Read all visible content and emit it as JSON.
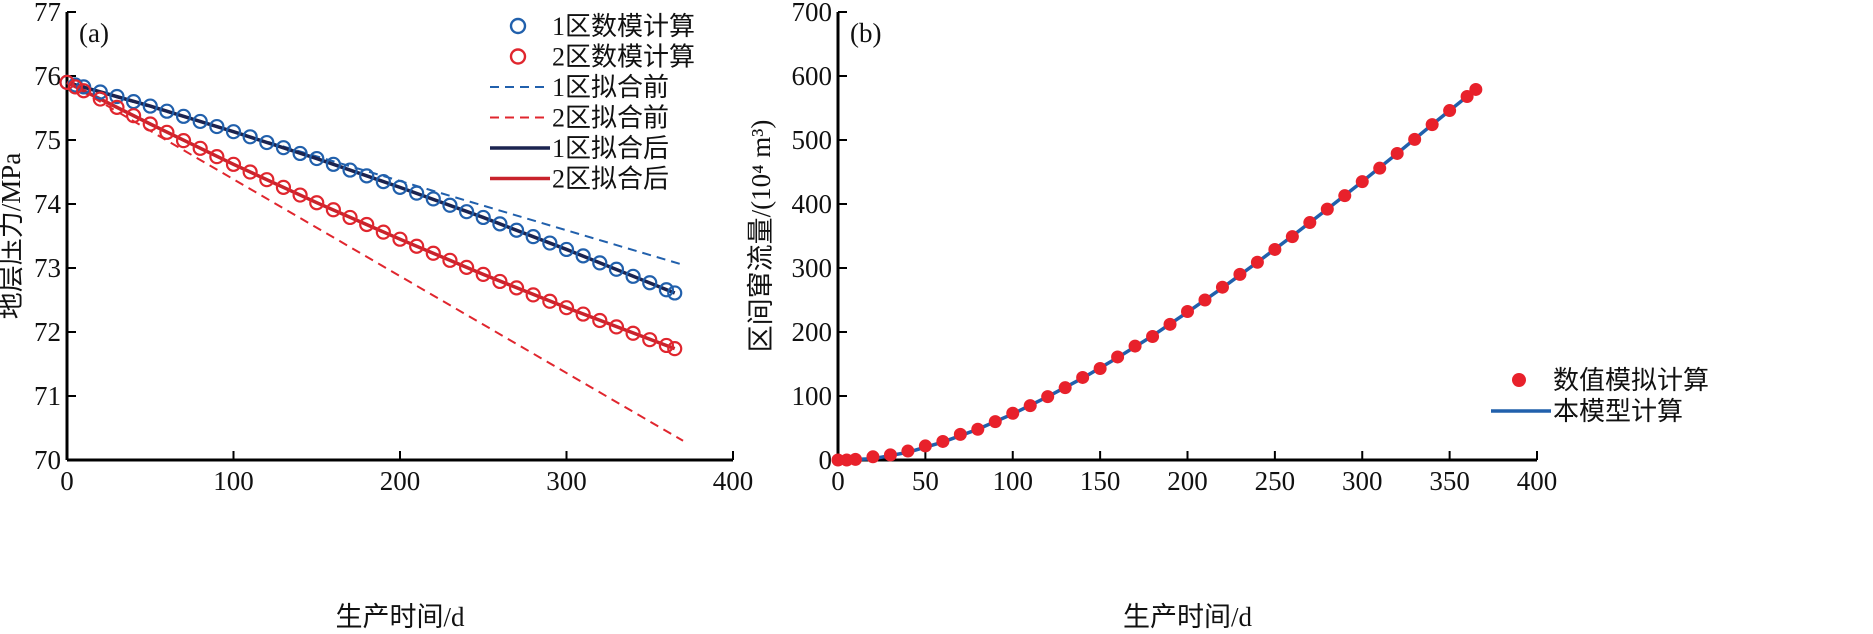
{
  "chart_data": [
    {
      "type": "scatter",
      "panel": "(a)",
      "xlabel": "生产时间/d",
      "ylabel": "地层压力/MPa",
      "xlim": [
        0,
        400
      ],
      "ylim": [
        70,
        77
      ],
      "xticks": [
        0,
        100,
        200,
        300,
        400
      ],
      "yticks": [
        70,
        71,
        72,
        73,
        74,
        75,
        76,
        77
      ],
      "legend_position": "top-right",
      "grid": false,
      "series": [
        {
          "name": "1区数模计算",
          "kind": "circle-open",
          "color": "#2160ac",
          "x": [
            0,
            5,
            10,
            20,
            30,
            40,
            50,
            60,
            70,
            80,
            90,
            100,
            110,
            120,
            130,
            140,
            150,
            160,
            170,
            180,
            190,
            200,
            210,
            220,
            230,
            240,
            250,
            260,
            270,
            280,
            290,
            300,
            310,
            320,
            330,
            340,
            350,
            360,
            365
          ],
          "y": [
            75.9,
            75.86,
            75.83,
            75.75,
            75.68,
            75.6,
            75.53,
            75.45,
            75.37,
            75.29,
            75.21,
            75.13,
            75.05,
            74.96,
            74.88,
            74.79,
            74.71,
            74.62,
            74.53,
            74.44,
            74.35,
            74.26,
            74.17,
            74.08,
            73.98,
            73.88,
            73.79,
            73.69,
            73.59,
            73.49,
            73.39,
            73.29,
            73.19,
            73.08,
            72.98,
            72.87,
            72.77,
            72.66,
            72.61
          ]
        },
        {
          "name": "2区数模计算",
          "kind": "circle-open",
          "color": "#e0262e",
          "x": [
            0,
            5,
            10,
            20,
            30,
            40,
            50,
            60,
            70,
            80,
            90,
            100,
            110,
            120,
            130,
            140,
            150,
            160,
            170,
            180,
            190,
            200,
            210,
            220,
            230,
            240,
            250,
            260,
            270,
            280,
            290,
            300,
            310,
            320,
            330,
            340,
            350,
            360,
            365
          ],
          "y": [
            75.9,
            75.83,
            75.77,
            75.64,
            75.51,
            75.38,
            75.25,
            75.12,
            74.99,
            74.87,
            74.74,
            74.62,
            74.5,
            74.38,
            74.26,
            74.14,
            74.02,
            73.91,
            73.79,
            73.68,
            73.56,
            73.45,
            73.34,
            73.23,
            73.12,
            73.01,
            72.9,
            72.79,
            72.69,
            72.58,
            72.48,
            72.38,
            72.28,
            72.18,
            72.08,
            71.98,
            71.88,
            71.79,
            71.74
          ]
        },
        {
          "name": "1区拟合前",
          "kind": "dashed",
          "color": "#2160ac",
          "x": [
            0,
            370
          ],
          "y": [
            75.9,
            73.05
          ]
        },
        {
          "name": "2区拟合前",
          "kind": "dashed",
          "color": "#e0262e",
          "x": [
            0,
            370
          ],
          "y": [
            75.9,
            70.3
          ]
        },
        {
          "name": "1区拟合后",
          "kind": "solid",
          "color": "#1b2450",
          "x": [
            0,
            50,
            100,
            150,
            200,
            250,
            300,
            365
          ],
          "y": [
            75.9,
            75.53,
            75.13,
            74.71,
            74.26,
            73.79,
            73.29,
            72.61
          ]
        },
        {
          "name": "2区拟合后",
          "kind": "solid",
          "color": "#c8232c",
          "x": [
            0,
            50,
            100,
            150,
            200,
            250,
            300,
            365
          ],
          "y": [
            75.9,
            75.25,
            74.62,
            74.02,
            73.45,
            72.9,
            72.38,
            71.74
          ]
        }
      ]
    },
    {
      "type": "scatter",
      "panel": "(b)",
      "xlabel": "生产时间/d",
      "ylabel": "区间窜流量/(10⁴ m³)",
      "xlim": [
        0,
        400
      ],
      "ylim": [
        0,
        700
      ],
      "xticks": [
        0,
        50,
        100,
        150,
        200,
        250,
        300,
        350,
        400
      ],
      "yticks": [
        0,
        100,
        200,
        300,
        400,
        500,
        600,
        700
      ],
      "legend_position": "bottom-right",
      "grid": false,
      "series": [
        {
          "name": "数值模拟计算",
          "kind": "circle-filled",
          "color": "#e8212b",
          "x": [
            0,
            5,
            10,
            20,
            30,
            40,
            50,
            60,
            70,
            80,
            90,
            100,
            110,
            120,
            130,
            140,
            150,
            160,
            170,
            180,
            190,
            200,
            210,
            220,
            230,
            240,
            250,
            260,
            270,
            280,
            290,
            300,
            310,
            320,
            330,
            340,
            350,
            360,
            365
          ],
          "y": [
            0,
            0,
            1,
            5,
            8,
            14,
            22,
            29,
            40,
            48,
            60,
            73,
            85,
            99,
            113,
            129,
            143,
            161,
            178,
            193,
            212,
            232,
            250,
            270,
            290,
            309,
            329,
            349,
            371,
            392,
            413,
            435,
            456,
            479,
            501,
            524,
            546,
            568,
            579
          ]
        },
        {
          "name": "本模型计算",
          "kind": "solid",
          "color": "#2160ac",
          "x": [
            0,
            20,
            40,
            60,
            80,
            100,
            120,
            140,
            160,
            180,
            200,
            220,
            240,
            260,
            280,
            300,
            320,
            340,
            365
          ],
          "y": [
            0,
            2,
            12,
            28,
            48,
            72,
            99,
            128,
            160,
            194,
            231,
            269,
            309,
            350,
            392,
            435,
            479,
            524,
            579
          ]
        }
      ]
    }
  ]
}
